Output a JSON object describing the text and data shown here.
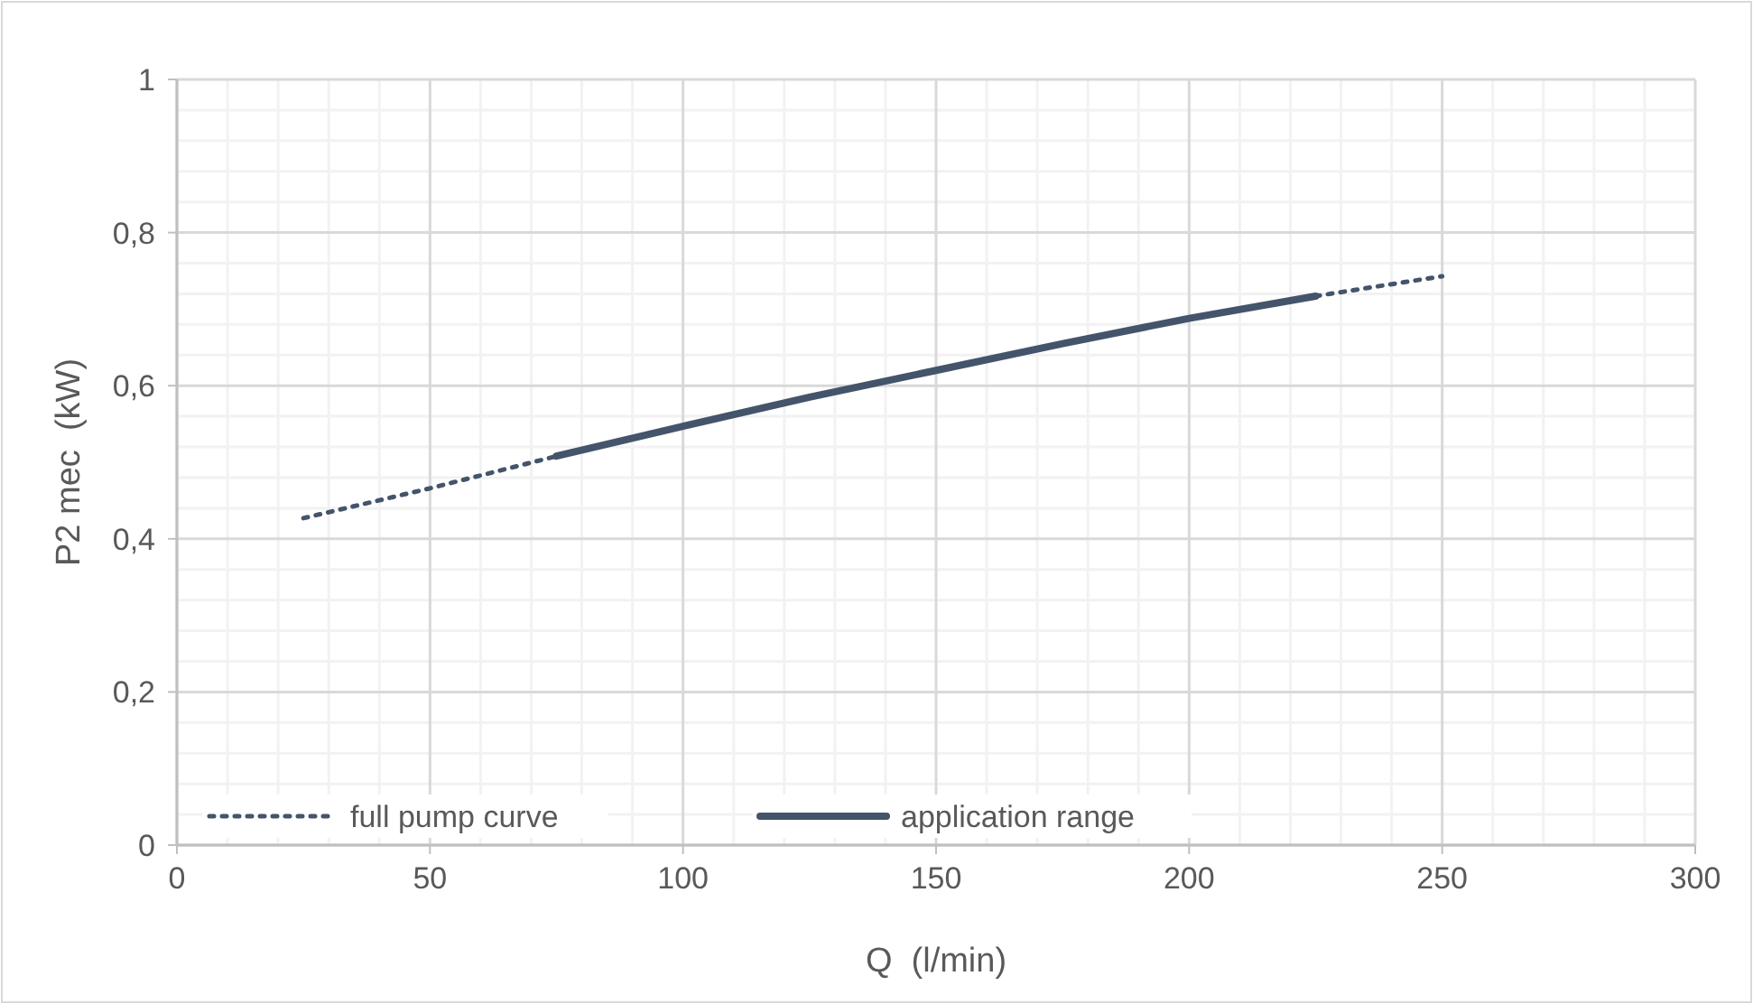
{
  "chart_data": {
    "type": "line",
    "xlabel": "Q  (l/min)",
    "ylabel": "P2 mec  (kW)",
    "xlim": [
      0,
      300
    ],
    "xticks": [
      0,
      50,
      100,
      150,
      200,
      250,
      300
    ],
    "ylim": [
      0,
      1
    ],
    "yticks": [
      0,
      {
        "value": 0.2,
        "label": "0,2"
      },
      {
        "value": 0.4,
        "label": "0,4"
      },
      {
        "value": 0.6,
        "label": "0,6"
      },
      {
        "value": 0.8,
        "label": "0,8"
      },
      1
    ],
    "grid": true,
    "legend": "bottom left",
    "series": [
      {
        "name": "full pump curve",
        "color": "#44546a",
        "line_style": "dotted",
        "x": [
          25,
          50,
          75,
          100,
          125,
          150,
          175,
          200,
          225,
          250
        ],
        "values": [
          0.427,
          0.466,
          0.508,
          0.547,
          0.585,
          0.62,
          0.655,
          0.688,
          0.717,
          0.743
        ]
      },
      {
        "name": "application range",
        "color": "#44546a",
        "line_style": "solid",
        "x": [
          75,
          100,
          125,
          150,
          175,
          200,
          225
        ],
        "values": [
          0.508,
          0.547,
          0.585,
          0.62,
          0.655,
          0.688,
          0.717
        ]
      }
    ]
  }
}
